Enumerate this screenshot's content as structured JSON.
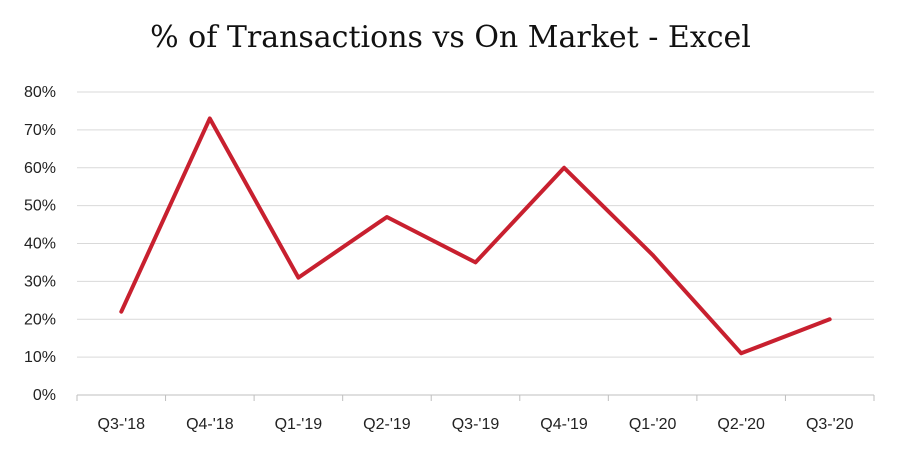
{
  "chart_data": {
    "type": "line",
    "title": "% of Transactions vs On Market - Excel",
    "xlabel": "",
    "ylabel": "",
    "categories": [
      "Q3-'18",
      "Q4-'18",
      "Q1-'19",
      "Q2-'19",
      "Q3-'19",
      "Q4-'19",
      "Q1-'20",
      "Q2-'20",
      "Q3-'20"
    ],
    "series": [
      {
        "values": [
          22,
          73,
          31,
          47,
          35,
          60,
          37,
          11,
          20
        ],
        "color": "#c8202f"
      }
    ],
    "ylim": [
      0,
      80
    ],
    "yticks": [
      "0%",
      "10%",
      "20%",
      "30%",
      "40%",
      "50%",
      "60%",
      "70%",
      "80%"
    ],
    "grid": "horizontal",
    "legend": "none"
  }
}
